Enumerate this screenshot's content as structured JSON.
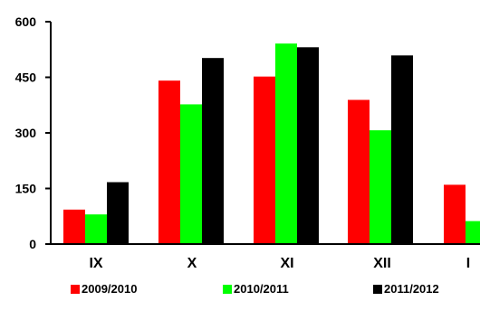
{
  "chart_data": {
    "type": "bar",
    "categories": [
      "IX",
      "X",
      "XI",
      "XII",
      "I"
    ],
    "series": [
      {
        "name": "2009/2010",
        "color": "#ff0000",
        "values": [
          93,
          441,
          452,
          389,
          160
        ]
      },
      {
        "name": "2010/2011",
        "color": "#00ff00",
        "values": [
          80,
          377,
          541,
          307,
          62
        ]
      },
      {
        "name": "2011/2012",
        "color": "#000000",
        "values": [
          167,
          502,
          531,
          509,
          null
        ]
      }
    ],
    "yticks": [
      "0",
      "150",
      "300",
      "450",
      "600"
    ],
    "ylim": [
      0,
      600
    ],
    "title": "",
    "xlabel": "",
    "ylabel": "",
    "grid": false,
    "legend_position": "bottom"
  }
}
